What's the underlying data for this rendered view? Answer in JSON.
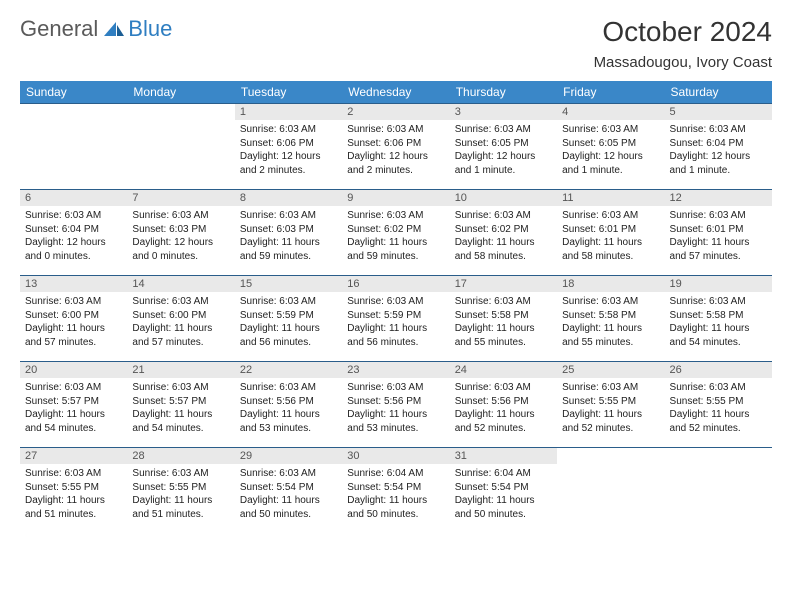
{
  "brand": {
    "part1": "General",
    "part2": "Blue"
  },
  "title": "October 2024",
  "location": "Massadougou, Ivory Coast",
  "colors": {
    "header_bg": "#3a87c8",
    "header_text": "#ffffff",
    "row_border": "#2a5d8a",
    "daynum_bg": "#e9e9e9",
    "logo_blue": "#2f7ec1",
    "logo_gray": "#5a5a5a"
  },
  "day_names": [
    "Sunday",
    "Monday",
    "Tuesday",
    "Wednesday",
    "Thursday",
    "Friday",
    "Saturday"
  ],
  "weeks": [
    [
      {
        "n": "",
        "sr": "",
        "ss": "",
        "dl": ""
      },
      {
        "n": "",
        "sr": "",
        "ss": "",
        "dl": ""
      },
      {
        "n": "1",
        "sr": "Sunrise: 6:03 AM",
        "ss": "Sunset: 6:06 PM",
        "dl": "Daylight: 12 hours and 2 minutes."
      },
      {
        "n": "2",
        "sr": "Sunrise: 6:03 AM",
        "ss": "Sunset: 6:06 PM",
        "dl": "Daylight: 12 hours and 2 minutes."
      },
      {
        "n": "3",
        "sr": "Sunrise: 6:03 AM",
        "ss": "Sunset: 6:05 PM",
        "dl": "Daylight: 12 hours and 1 minute."
      },
      {
        "n": "4",
        "sr": "Sunrise: 6:03 AM",
        "ss": "Sunset: 6:05 PM",
        "dl": "Daylight: 12 hours and 1 minute."
      },
      {
        "n": "5",
        "sr": "Sunrise: 6:03 AM",
        "ss": "Sunset: 6:04 PM",
        "dl": "Daylight: 12 hours and 1 minute."
      }
    ],
    [
      {
        "n": "6",
        "sr": "Sunrise: 6:03 AM",
        "ss": "Sunset: 6:04 PM",
        "dl": "Daylight: 12 hours and 0 minutes."
      },
      {
        "n": "7",
        "sr": "Sunrise: 6:03 AM",
        "ss": "Sunset: 6:03 PM",
        "dl": "Daylight: 12 hours and 0 minutes."
      },
      {
        "n": "8",
        "sr": "Sunrise: 6:03 AM",
        "ss": "Sunset: 6:03 PM",
        "dl": "Daylight: 11 hours and 59 minutes."
      },
      {
        "n": "9",
        "sr": "Sunrise: 6:03 AM",
        "ss": "Sunset: 6:02 PM",
        "dl": "Daylight: 11 hours and 59 minutes."
      },
      {
        "n": "10",
        "sr": "Sunrise: 6:03 AM",
        "ss": "Sunset: 6:02 PM",
        "dl": "Daylight: 11 hours and 58 minutes."
      },
      {
        "n": "11",
        "sr": "Sunrise: 6:03 AM",
        "ss": "Sunset: 6:01 PM",
        "dl": "Daylight: 11 hours and 58 minutes."
      },
      {
        "n": "12",
        "sr": "Sunrise: 6:03 AM",
        "ss": "Sunset: 6:01 PM",
        "dl": "Daylight: 11 hours and 57 minutes."
      }
    ],
    [
      {
        "n": "13",
        "sr": "Sunrise: 6:03 AM",
        "ss": "Sunset: 6:00 PM",
        "dl": "Daylight: 11 hours and 57 minutes."
      },
      {
        "n": "14",
        "sr": "Sunrise: 6:03 AM",
        "ss": "Sunset: 6:00 PM",
        "dl": "Daylight: 11 hours and 57 minutes."
      },
      {
        "n": "15",
        "sr": "Sunrise: 6:03 AM",
        "ss": "Sunset: 5:59 PM",
        "dl": "Daylight: 11 hours and 56 minutes."
      },
      {
        "n": "16",
        "sr": "Sunrise: 6:03 AM",
        "ss": "Sunset: 5:59 PM",
        "dl": "Daylight: 11 hours and 56 minutes."
      },
      {
        "n": "17",
        "sr": "Sunrise: 6:03 AM",
        "ss": "Sunset: 5:58 PM",
        "dl": "Daylight: 11 hours and 55 minutes."
      },
      {
        "n": "18",
        "sr": "Sunrise: 6:03 AM",
        "ss": "Sunset: 5:58 PM",
        "dl": "Daylight: 11 hours and 55 minutes."
      },
      {
        "n": "19",
        "sr": "Sunrise: 6:03 AM",
        "ss": "Sunset: 5:58 PM",
        "dl": "Daylight: 11 hours and 54 minutes."
      }
    ],
    [
      {
        "n": "20",
        "sr": "Sunrise: 6:03 AM",
        "ss": "Sunset: 5:57 PM",
        "dl": "Daylight: 11 hours and 54 minutes."
      },
      {
        "n": "21",
        "sr": "Sunrise: 6:03 AM",
        "ss": "Sunset: 5:57 PM",
        "dl": "Daylight: 11 hours and 54 minutes."
      },
      {
        "n": "22",
        "sr": "Sunrise: 6:03 AM",
        "ss": "Sunset: 5:56 PM",
        "dl": "Daylight: 11 hours and 53 minutes."
      },
      {
        "n": "23",
        "sr": "Sunrise: 6:03 AM",
        "ss": "Sunset: 5:56 PM",
        "dl": "Daylight: 11 hours and 53 minutes."
      },
      {
        "n": "24",
        "sr": "Sunrise: 6:03 AM",
        "ss": "Sunset: 5:56 PM",
        "dl": "Daylight: 11 hours and 52 minutes."
      },
      {
        "n": "25",
        "sr": "Sunrise: 6:03 AM",
        "ss": "Sunset: 5:55 PM",
        "dl": "Daylight: 11 hours and 52 minutes."
      },
      {
        "n": "26",
        "sr": "Sunrise: 6:03 AM",
        "ss": "Sunset: 5:55 PM",
        "dl": "Daylight: 11 hours and 52 minutes."
      }
    ],
    [
      {
        "n": "27",
        "sr": "Sunrise: 6:03 AM",
        "ss": "Sunset: 5:55 PM",
        "dl": "Daylight: 11 hours and 51 minutes."
      },
      {
        "n": "28",
        "sr": "Sunrise: 6:03 AM",
        "ss": "Sunset: 5:55 PM",
        "dl": "Daylight: 11 hours and 51 minutes."
      },
      {
        "n": "29",
        "sr": "Sunrise: 6:03 AM",
        "ss": "Sunset: 5:54 PM",
        "dl": "Daylight: 11 hours and 50 minutes."
      },
      {
        "n": "30",
        "sr": "Sunrise: 6:04 AM",
        "ss": "Sunset: 5:54 PM",
        "dl": "Daylight: 11 hours and 50 minutes."
      },
      {
        "n": "31",
        "sr": "Sunrise: 6:04 AM",
        "ss": "Sunset: 5:54 PM",
        "dl": "Daylight: 11 hours and 50 minutes."
      },
      {
        "n": "",
        "sr": "",
        "ss": "",
        "dl": ""
      },
      {
        "n": "",
        "sr": "",
        "ss": "",
        "dl": ""
      }
    ]
  ]
}
